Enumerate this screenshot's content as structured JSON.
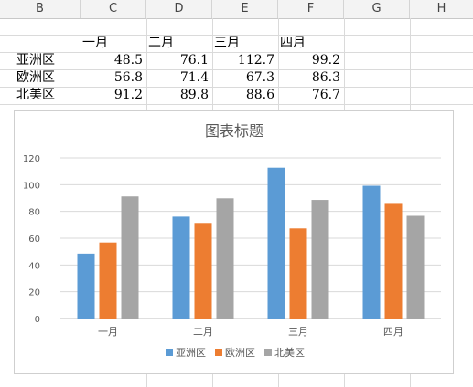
{
  "sheet": {
    "columns": [
      "B",
      "C",
      "D",
      "E",
      "F",
      "G",
      "H"
    ],
    "header_row": [
      "",
      "一月",
      "二月",
      "三月",
      "四月"
    ],
    "rows": [
      {
        "label": "亚洲区",
        "values": [
          "48.5",
          "76.1",
          "112.7",
          "99.2"
        ]
      },
      {
        "label": "欧洲区",
        "values": [
          "56.8",
          "71.4",
          "67.3",
          "86.3"
        ]
      },
      {
        "label": "北美区",
        "values": [
          "91.2",
          "89.8",
          "88.6",
          "76.7"
        ]
      }
    ]
  },
  "chart_data": {
    "type": "bar",
    "title": "图表标题",
    "categories": [
      "一月",
      "二月",
      "三月",
      "四月"
    ],
    "series": [
      {
        "name": "亚洲区",
        "values": [
          48.5,
          76.1,
          112.7,
          99.2
        ],
        "color": "#5b9bd5"
      },
      {
        "name": "欧洲区",
        "values": [
          56.8,
          71.4,
          67.3,
          86.3
        ],
        "color": "#ed7d31"
      },
      {
        "name": "北美区",
        "values": [
          91.2,
          89.8,
          88.6,
          76.7
        ],
        "color": "#a5a5a5"
      }
    ],
    "ylim": [
      0,
      120
    ],
    "yticks": [
      "0",
      "20",
      "40",
      "60",
      "80",
      "100",
      "120"
    ],
    "grid": true,
    "legend": "bottom"
  }
}
